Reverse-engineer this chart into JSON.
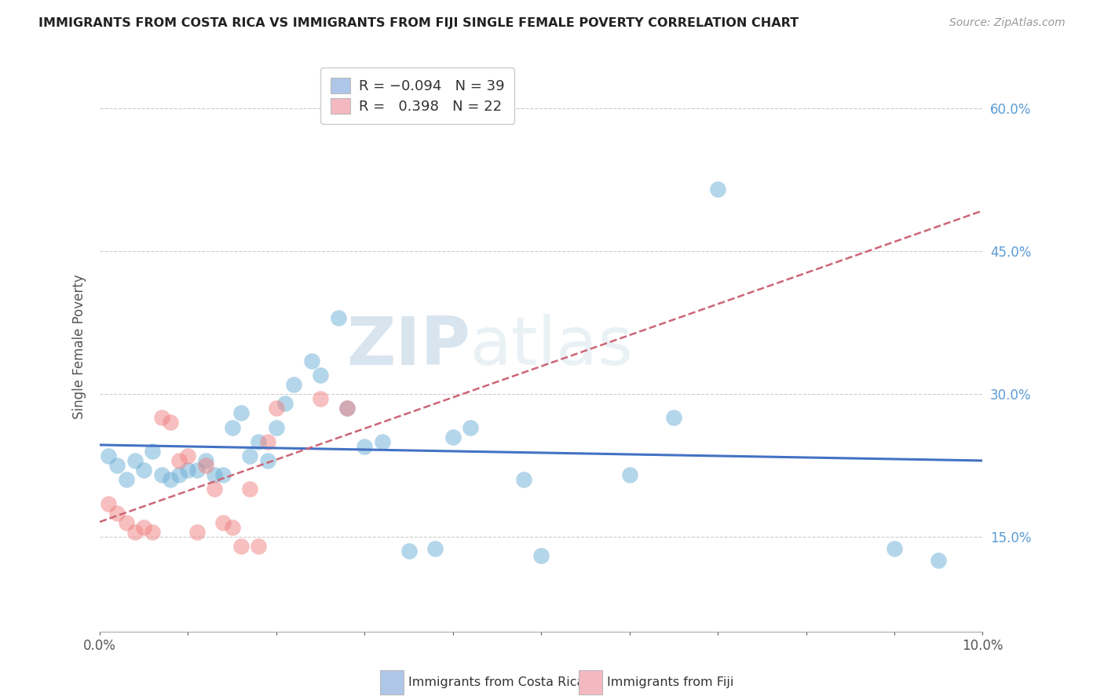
{
  "title": "IMMIGRANTS FROM COSTA RICA VS IMMIGRANTS FROM FIJI SINGLE FEMALE POVERTY CORRELATION CHART",
  "source": "Source: ZipAtlas.com",
  "ylabel": "Single Female Poverty",
  "ylabel_right_ticks": [
    "60.0%",
    "45.0%",
    "30.0%",
    "15.0%"
  ],
  "ylabel_right_vals": [
    0.6,
    0.45,
    0.3,
    0.15
  ],
  "xmin": 0.0,
  "xmax": 0.1,
  "ymin": 0.05,
  "ymax": 0.65,
  "legend1_r": "R = ",
  "legend1_rval": "-0.094",
  "legend1_n": "  N = 39",
  "legend2_r": "R =  ",
  "legend2_rval": "0.398",
  "legend2_n": "  N = 22",
  "legend1_color": "#aec6e8",
  "legend2_color": "#f4b8c1",
  "costa_rica_color": "#6baed6",
  "fiji_color": "#f08080",
  "trend_costa_rica_color": "#4472c4",
  "trend_fiji_color": "#cc6677",
  "watermark_zip": "ZIP",
  "watermark_atlas": "atlas",
  "costa_rica_x": [
    0.001,
    0.002,
    0.003,
    0.004,
    0.005,
    0.006,
    0.007,
    0.008,
    0.009,
    0.01,
    0.011,
    0.012,
    0.013,
    0.014,
    0.015,
    0.016,
    0.017,
    0.018,
    0.019,
    0.02,
    0.021,
    0.022,
    0.024,
    0.025,
    0.027,
    0.028,
    0.03,
    0.032,
    0.035,
    0.038,
    0.04,
    0.042,
    0.048,
    0.05,
    0.06,
    0.065,
    0.07,
    0.09,
    0.095
  ],
  "costa_rica_y": [
    0.235,
    0.225,
    0.21,
    0.23,
    0.22,
    0.24,
    0.215,
    0.21,
    0.215,
    0.22,
    0.22,
    0.23,
    0.215,
    0.215,
    0.265,
    0.28,
    0.235,
    0.25,
    0.23,
    0.265,
    0.29,
    0.31,
    0.335,
    0.32,
    0.38,
    0.285,
    0.245,
    0.25,
    0.135,
    0.138,
    0.255,
    0.265,
    0.21,
    0.13,
    0.215,
    0.275,
    0.515,
    0.138,
    0.125
  ],
  "fiji_x": [
    0.001,
    0.002,
    0.003,
    0.004,
    0.005,
    0.006,
    0.007,
    0.008,
    0.009,
    0.01,
    0.011,
    0.012,
    0.013,
    0.014,
    0.015,
    0.016,
    0.017,
    0.018,
    0.019,
    0.02,
    0.025,
    0.028
  ],
  "fiji_y": [
    0.185,
    0.175,
    0.165,
    0.155,
    0.16,
    0.155,
    0.275,
    0.27,
    0.23,
    0.235,
    0.155,
    0.225,
    0.2,
    0.165,
    0.16,
    0.14,
    0.2,
    0.14,
    0.25,
    0.285,
    0.295,
    0.285
  ]
}
